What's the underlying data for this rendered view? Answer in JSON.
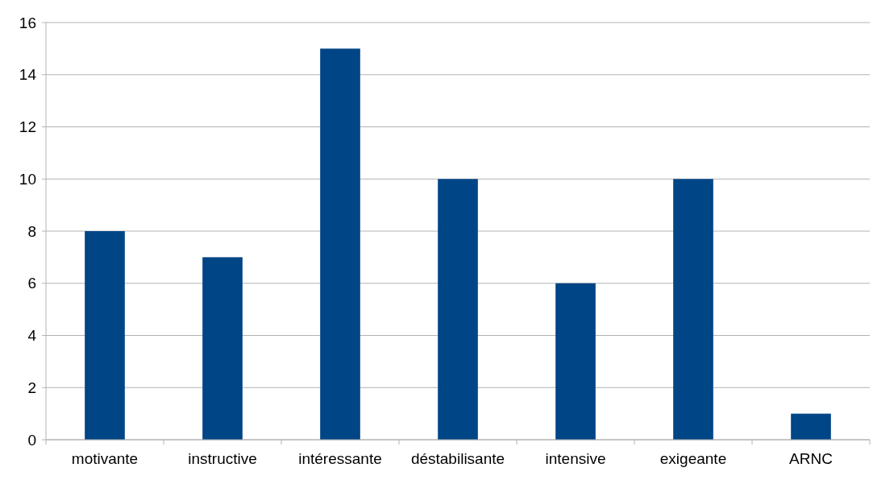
{
  "chart_data": {
    "type": "bar",
    "categories": [
      "motivante",
      "instructive",
      "intéressante",
      "déstabilisante",
      "intensive",
      "exigeante",
      "ARNC"
    ],
    "values": [
      8,
      7,
      15,
      10,
      6,
      10,
      1
    ],
    "color": "#004586",
    "ylim": [
      0,
      16
    ],
    "yticks": [
      0,
      2,
      4,
      6,
      8,
      10,
      12,
      14,
      16
    ],
    "grid": "y"
  }
}
